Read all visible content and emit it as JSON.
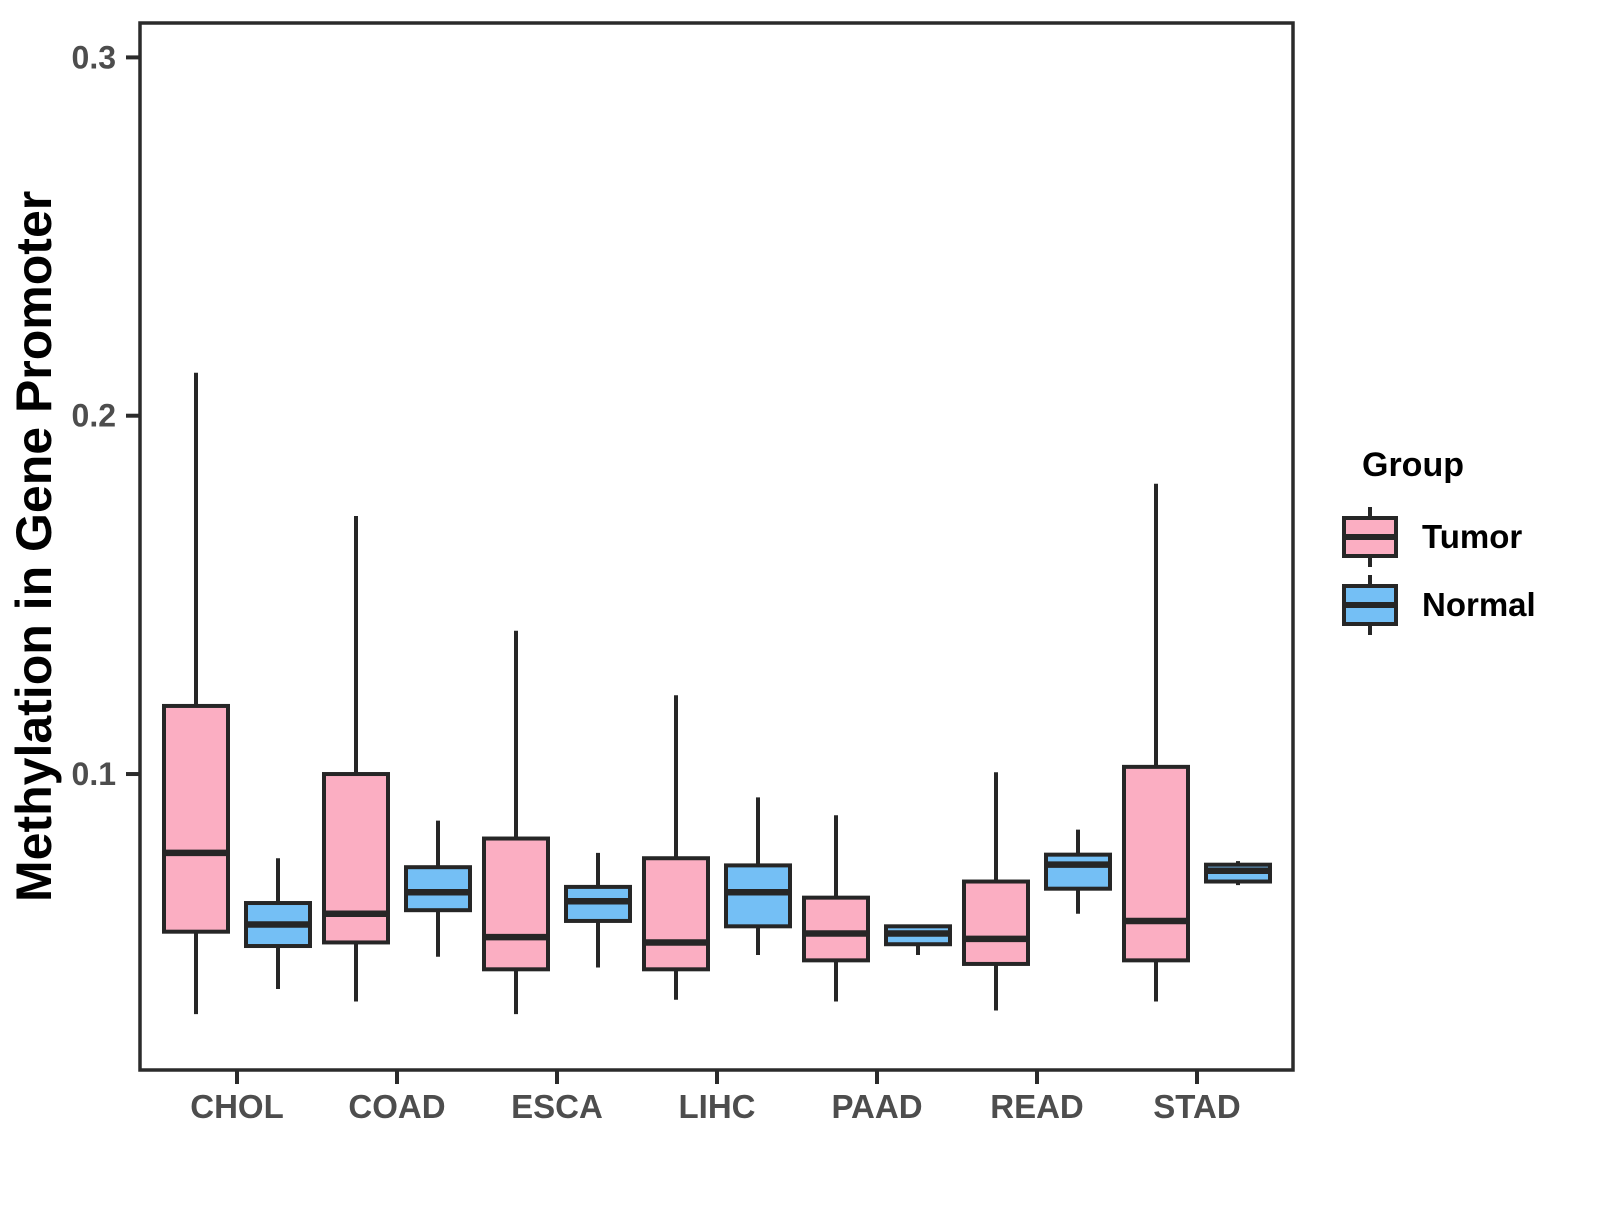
{
  "figure": {
    "legend": {
      "title": "Group",
      "items": [
        {
          "label": "Tumor",
          "color": "#FBAEC2"
        },
        {
          "label": "Normal",
          "color": "#74BFF5"
        }
      ]
    }
  },
  "chart_data": {
    "type": "boxplot",
    "title": "",
    "xlabel": "",
    "ylabel": "Methylation in Gene Promoter",
    "categories": [
      "CHOL",
      "COAD",
      "ESCA",
      "LIHC",
      "PAAD",
      "READ",
      "STAD"
    ],
    "groups": [
      "Tumor",
      "Normal"
    ],
    "colors": {
      "Tumor": "#FBAEC2",
      "Normal": "#74BFF5",
      "stroke": "#262626",
      "axis": "#2b2b2b"
    },
    "ylim": [
      0.0174,
      0.3096
    ],
    "y_ticks": [
      0.1,
      0.2,
      0.3
    ],
    "grid": "off",
    "legend_position": "right",
    "series": [
      {
        "name": "Tumor",
        "boxes": [
          {
            "category": "CHOL",
            "low": 0.033,
            "q1": 0.056,
            "median": 0.078,
            "q3": 0.119,
            "high": 0.212
          },
          {
            "category": "COAD",
            "low": 0.0365,
            "q1": 0.053,
            "median": 0.061,
            "q3": 0.1,
            "high": 0.172
          },
          {
            "category": "ESCA",
            "low": 0.033,
            "q1": 0.0455,
            "median": 0.0545,
            "q3": 0.082,
            "high": 0.14
          },
          {
            "category": "LIHC",
            "low": 0.037,
            "q1": 0.0455,
            "median": 0.053,
            "q3": 0.0765,
            "high": 0.122
          },
          {
            "category": "PAAD",
            "low": 0.0365,
            "q1": 0.048,
            "median": 0.0555,
            "q3": 0.0655,
            "high": 0.0885
          },
          {
            "category": "READ",
            "low": 0.034,
            "q1": 0.047,
            "median": 0.054,
            "q3": 0.07,
            "high": 0.1005
          },
          {
            "category": "STAD",
            "low": 0.0365,
            "q1": 0.048,
            "median": 0.059,
            "q3": 0.102,
            "high": 0.181
          }
        ]
      },
      {
        "name": "Normal",
        "boxes": [
          {
            "category": "CHOL",
            "low": 0.04,
            "q1": 0.052,
            "median": 0.058,
            "q3": 0.064,
            "high": 0.0765
          },
          {
            "category": "COAD",
            "low": 0.049,
            "q1": 0.062,
            "median": 0.067,
            "q3": 0.074,
            "high": 0.087
          },
          {
            "category": "ESCA",
            "low": 0.046,
            "q1": 0.059,
            "median": 0.0645,
            "q3": 0.0685,
            "high": 0.078
          },
          {
            "category": "LIHC",
            "low": 0.0495,
            "q1": 0.0575,
            "median": 0.067,
            "q3": 0.0745,
            "high": 0.0935
          },
          {
            "category": "PAAD",
            "low": 0.0495,
            "q1": 0.0525,
            "median": 0.0555,
            "q3": 0.0575,
            "high": 0.058
          },
          {
            "category": "READ",
            "low": 0.061,
            "q1": 0.068,
            "median": 0.0747,
            "q3": 0.0775,
            "high": 0.0845
          },
          {
            "category": "STAD",
            "low": 0.069,
            "q1": 0.07,
            "median": 0.073,
            "q3": 0.0747,
            "high": 0.0757
          }
        ]
      }
    ]
  }
}
